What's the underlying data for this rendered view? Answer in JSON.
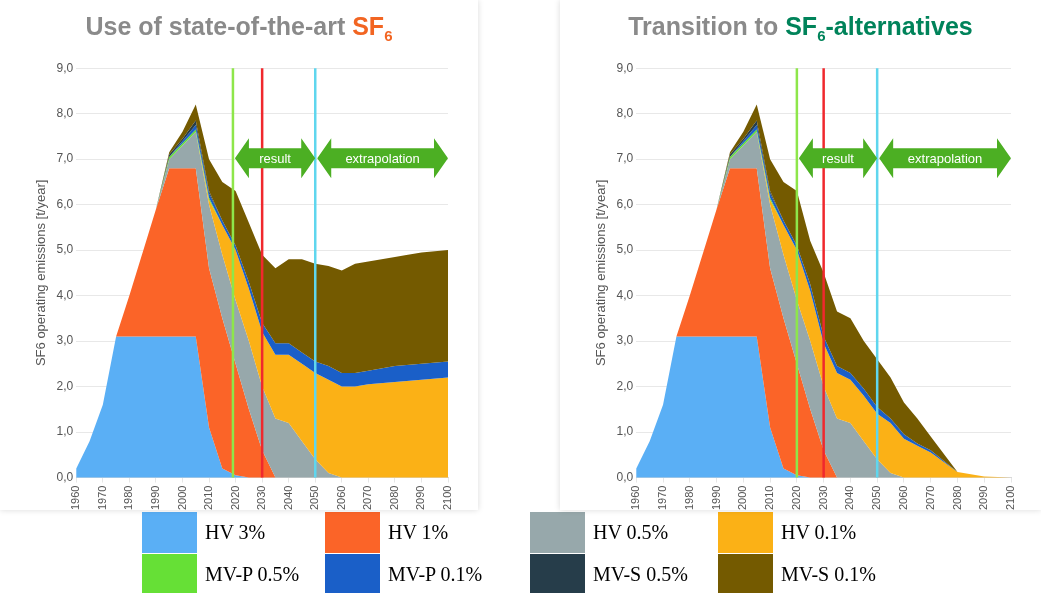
{
  "chart_data": [
    {
      "type": "area",
      "title": "Use of state-of-the-art SF$_{6}$",
      "ylabel": "SF6 operating emissions [t/year]",
      "stacked": true,
      "grid": "y",
      "legend": "bottom",
      "marker": "none",
      "x": [
        1960,
        1965,
        1970,
        1975,
        1980,
        1985,
        1990,
        1995,
        2000,
        2005,
        2010,
        2015,
        2020,
        2025,
        2030,
        2035,
        2040,
        2045,
        2050,
        2055,
        2060,
        2065,
        2070,
        2080,
        2090,
        2100
      ],
      "xlim": [
        1960,
        2100
      ],
      "xticks": [
        1960,
        1970,
        1980,
        1990,
        2000,
        2010,
        2020,
        2030,
        2040,
        2050,
        2060,
        2070,
        2080,
        2090,
        2100
      ],
      "ylim": [
        0,
        9
      ],
      "yticks": [
        {
          "value": 0,
          "label": "0,0"
        },
        {
          "value": 1,
          "label": "1,0"
        },
        {
          "value": 2,
          "label": "2,0"
        },
        {
          "value": 3,
          "label": "3,0"
        },
        {
          "value": 4,
          "label": "4,0"
        },
        {
          "value": 5,
          "label": "5,0"
        },
        {
          "value": 6,
          "label": "6,0"
        },
        {
          "value": 7,
          "label": "7,0"
        },
        {
          "value": 8,
          "label": "8,0"
        },
        {
          "value": 9,
          "label": "9,0"
        }
      ],
      "series": [
        {
          "name": "HV 3%",
          "color": "#5aaff5",
          "values": [
            0.2,
            0.8,
            1.6,
            3.1,
            3.1,
            3.1,
            3.1,
            3.1,
            3.1,
            3.1,
            1.1,
            0.2,
            0.05,
            0,
            null,
            null,
            null,
            null,
            null,
            null,
            null,
            null,
            null,
            null,
            null,
            null
          ]
        },
        {
          "name": "HV 1%",
          "color": "#fb6428",
          "values": [
            null,
            null,
            null,
            0,
            0.9,
            1.85,
            2.8,
            3.7,
            3.7,
            3.7,
            3.5,
            3.3,
            2.45,
            1.5,
            0.6,
            0,
            null,
            null,
            null,
            null,
            null,
            null,
            null,
            null,
            null,
            null
          ]
        },
        {
          "name": "HV 0.5%",
          "color": "#97a8ab",
          "values": [
            null,
            null,
            null,
            null,
            null,
            null,
            0,
            0.2,
            0.5,
            0.8,
            1.4,
            1.4,
            1.4,
            1.5,
            1.4,
            1.3,
            1.2,
            0.8,
            0.4,
            0.1,
            0,
            null,
            null,
            null,
            null,
            null
          ]
        },
        {
          "name": "HV 0.1%",
          "color": "#fbb116",
          "values": [
            null,
            null,
            null,
            null,
            null,
            null,
            null,
            null,
            null,
            0,
            0.1,
            0.65,
            1.1,
            1.15,
            1.2,
            1.4,
            1.5,
            1.7,
            1.9,
            2.05,
            2.0,
            2.0,
            2.05,
            2.1,
            2.15,
            2.2
          ]
        },
        {
          "name": "MV-P 0.5%",
          "color": "#66e036",
          "values": [
            null,
            null,
            null,
            null,
            null,
            null,
            0,
            0.05,
            0.05,
            0.05,
            0.05,
            0,
            null,
            null,
            null,
            null,
            null,
            null,
            null,
            null,
            null,
            null,
            null,
            null,
            null,
            null
          ]
        },
        {
          "name": "MV-P 0.1%",
          "color": "#1a5fc8",
          "values": [
            null,
            null,
            null,
            null,
            null,
            null,
            null,
            0,
            0.05,
            0.1,
            0.1,
            0.1,
            0.1,
            0.15,
            0.2,
            0.25,
            0.25,
            0.25,
            0.25,
            0.3,
            0.3,
            0.3,
            0.3,
            0.35,
            0.35,
            0.35
          ]
        },
        {
          "name": "MV-S 0.5%",
          "color": "#263d4a",
          "values": [
            null,
            null,
            null,
            null,
            null,
            null,
            0,
            0.05,
            0.05,
            0.1,
            0.05,
            0,
            null,
            null,
            null,
            null,
            null,
            null,
            null,
            null,
            null,
            null,
            null,
            null,
            null,
            null
          ]
        },
        {
          "name": "MV-S 0.1%",
          "color": "#745a00",
          "values": [
            null,
            null,
            null,
            null,
            null,
            null,
            0,
            0.05,
            0.15,
            0.35,
            0.7,
            0.85,
            1.2,
            1.3,
            1.5,
            1.65,
            1.85,
            2.05,
            2.15,
            2.2,
            2.25,
            2.4,
            2.4,
            2.4,
            2.45,
            2.45
          ]
        }
      ],
      "ref_lines": [
        {
          "axis": "x",
          "value": 2019,
          "color": "#8ee64a"
        },
        {
          "axis": "x",
          "value": 2030,
          "color": "#f0282d"
        },
        {
          "axis": "x",
          "value": 2050,
          "color": "#5fd6ee"
        }
      ],
      "annotations": [
        "result",
        "extrapolation"
      ]
    },
    {
      "type": "area",
      "title": "Transition to SF$_{6}$-alternatives",
      "ylabel": "SF6 operating emissions [t/year]",
      "stacked": true,
      "grid": "y",
      "legend": "bottom",
      "marker": "none",
      "x": [
        1960,
        1965,
        1970,
        1975,
        1980,
        1985,
        1990,
        1995,
        2000,
        2005,
        2010,
        2015,
        2020,
        2025,
        2030,
        2035,
        2040,
        2045,
        2050,
        2055,
        2060,
        2065,
        2070,
        2080,
        2090,
        2100
      ],
      "xlim": [
        1960,
        2100
      ],
      "xticks": [
        1960,
        1970,
        1980,
        1990,
        2000,
        2010,
        2020,
        2030,
        2040,
        2050,
        2060,
        2070,
        2080,
        2090,
        2100
      ],
      "ylim": [
        0,
        9
      ],
      "yticks": [
        {
          "value": 0,
          "label": "0,0"
        },
        {
          "value": 1,
          "label": "1,0"
        },
        {
          "value": 2,
          "label": "2,0"
        },
        {
          "value": 3,
          "label": "3,0"
        },
        {
          "value": 4,
          "label": "4,0"
        },
        {
          "value": 5,
          "label": "5,0"
        },
        {
          "value": 6,
          "label": "6,0"
        },
        {
          "value": 7,
          "label": "7,0"
        },
        {
          "value": 8,
          "label": "8,0"
        },
        {
          "value": 9,
          "label": "9,0"
        }
      ],
      "series": [
        {
          "name": "HV 3%",
          "color": "#5aaff5",
          "values": [
            0.2,
            0.8,
            1.6,
            3.1,
            3.1,
            3.1,
            3.1,
            3.1,
            3.1,
            3.1,
            1.1,
            0.2,
            0.05,
            0,
            null,
            null,
            null,
            null,
            null,
            null,
            null,
            null,
            null,
            null,
            null,
            null
          ]
        },
        {
          "name": "HV 1%",
          "color": "#fb6428",
          "values": [
            null,
            null,
            null,
            0,
            0.9,
            1.85,
            2.8,
            3.7,
            3.7,
            3.7,
            3.5,
            3.3,
            2.45,
            1.5,
            0.6,
            0,
            null,
            null,
            null,
            null,
            null,
            null,
            null,
            null,
            null,
            null
          ]
        },
        {
          "name": "HV 0.5%",
          "color": "#97a8ab",
          "values": [
            null,
            null,
            null,
            null,
            null,
            null,
            0,
            0.2,
            0.5,
            0.8,
            1.4,
            1.4,
            1.4,
            1.5,
            1.4,
            1.3,
            1.2,
            0.8,
            0.4,
            0.1,
            0,
            null,
            null,
            null,
            null,
            null
          ]
        },
        {
          "name": "HV 0.1%",
          "color": "#fbb116",
          "values": [
            null,
            null,
            null,
            null,
            null,
            null,
            null,
            null,
            null,
            0,
            0.1,
            0.65,
            1.1,
            1.1,
            0.95,
            1.0,
            0.95,
            1.0,
            1.0,
            1.1,
            0.85,
            0.7,
            0.55,
            0.12,
            0.02,
            0
          ]
        },
        {
          "name": "MV-P 0.5%",
          "color": "#66e036",
          "values": [
            null,
            null,
            null,
            null,
            null,
            null,
            0,
            0.05,
            0.05,
            0.05,
            0.05,
            0,
            null,
            null,
            null,
            null,
            null,
            null,
            null,
            null,
            null,
            null,
            null,
            null,
            null,
            null
          ]
        },
        {
          "name": "MV-P 0.1%",
          "color": "#1a5fc8",
          "values": [
            null,
            null,
            null,
            null,
            null,
            null,
            null,
            0,
            0.05,
            0.1,
            0.1,
            0.1,
            0.1,
            0.15,
            0.15,
            0.15,
            0.15,
            0.15,
            0.15,
            0.1,
            0.1,
            0.05,
            0.05,
            0,
            null,
            null
          ]
        },
        {
          "name": "MV-S 0.5%",
          "color": "#263d4a",
          "values": [
            null,
            null,
            null,
            null,
            null,
            null,
            0,
            0.05,
            0.05,
            0.1,
            0.05,
            0,
            null,
            null,
            null,
            null,
            null,
            null,
            null,
            null,
            null,
            null,
            null,
            null,
            null,
            null
          ]
        },
        {
          "name": "MV-S 0.1%",
          "color": "#745a00",
          "values": [
            null,
            null,
            null,
            null,
            null,
            null,
            0,
            0.05,
            0.15,
            0.35,
            0.7,
            0.85,
            1.2,
            0.95,
            1.4,
            1.2,
            1.2,
            1.05,
            1.05,
            0.9,
            0.7,
            0.55,
            0.3,
            0,
            null,
            null
          ]
        }
      ],
      "ref_lines": [
        {
          "axis": "x",
          "value": 2020,
          "color": "#8ee64a"
        },
        {
          "axis": "x",
          "value": 2030,
          "color": "#f0282d"
        },
        {
          "axis": "x",
          "value": 2050,
          "color": "#5fd6ee"
        }
      ],
      "annotations": [
        "result",
        "extrapolation"
      ]
    }
  ]
}
